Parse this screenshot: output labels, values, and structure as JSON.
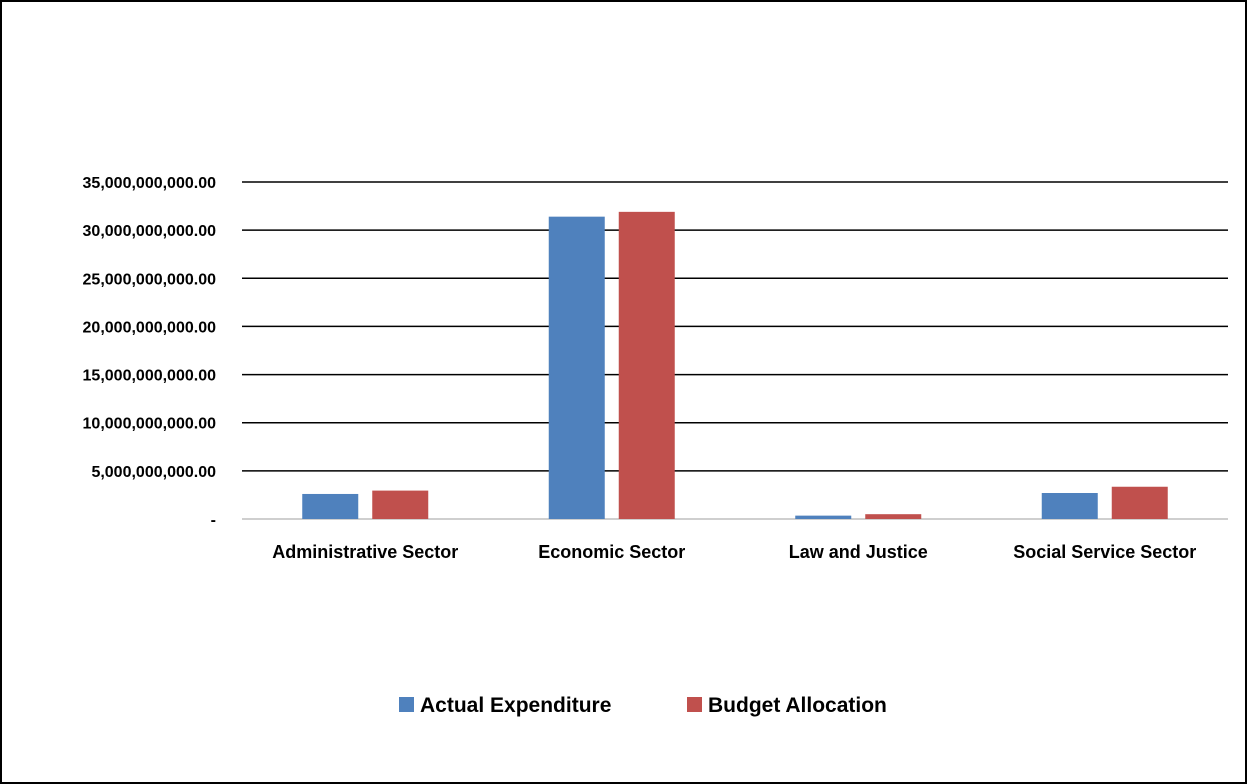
{
  "chart_data": {
    "type": "bar",
    "title": "",
    "xlabel": "",
    "ylabel": "",
    "categories": [
      "Administrative Sector",
      "Economic Sector",
      "Law and Justice",
      "Social Service Sector"
    ],
    "series": [
      {
        "name": "Actual Expenditure",
        "color": "#4f81bd",
        "values": [
          2600000000,
          31400000000,
          350000000,
          2700000000
        ]
      },
      {
        "name": "Budget Allocation",
        "color": "#c0504d",
        "values": [
          2950000000,
          31900000000,
          500000000,
          3350000000
        ]
      }
    ],
    "ylim": [
      0,
      35000000000
    ],
    "yticks": [
      0,
      5000000000,
      10000000000,
      15000000000,
      20000000000,
      25000000000,
      30000000000,
      35000000000
    ],
    "ytick_labels": [
      "-",
      "5,000,000,000.00",
      "10,000,000,000.00",
      "15,000,000,000.00",
      "20,000,000,000.00",
      "25,000,000,000.00",
      "30,000,000,000.00",
      "35,000,000,000.00"
    ],
    "grid": true,
    "legend": "bottom"
  }
}
